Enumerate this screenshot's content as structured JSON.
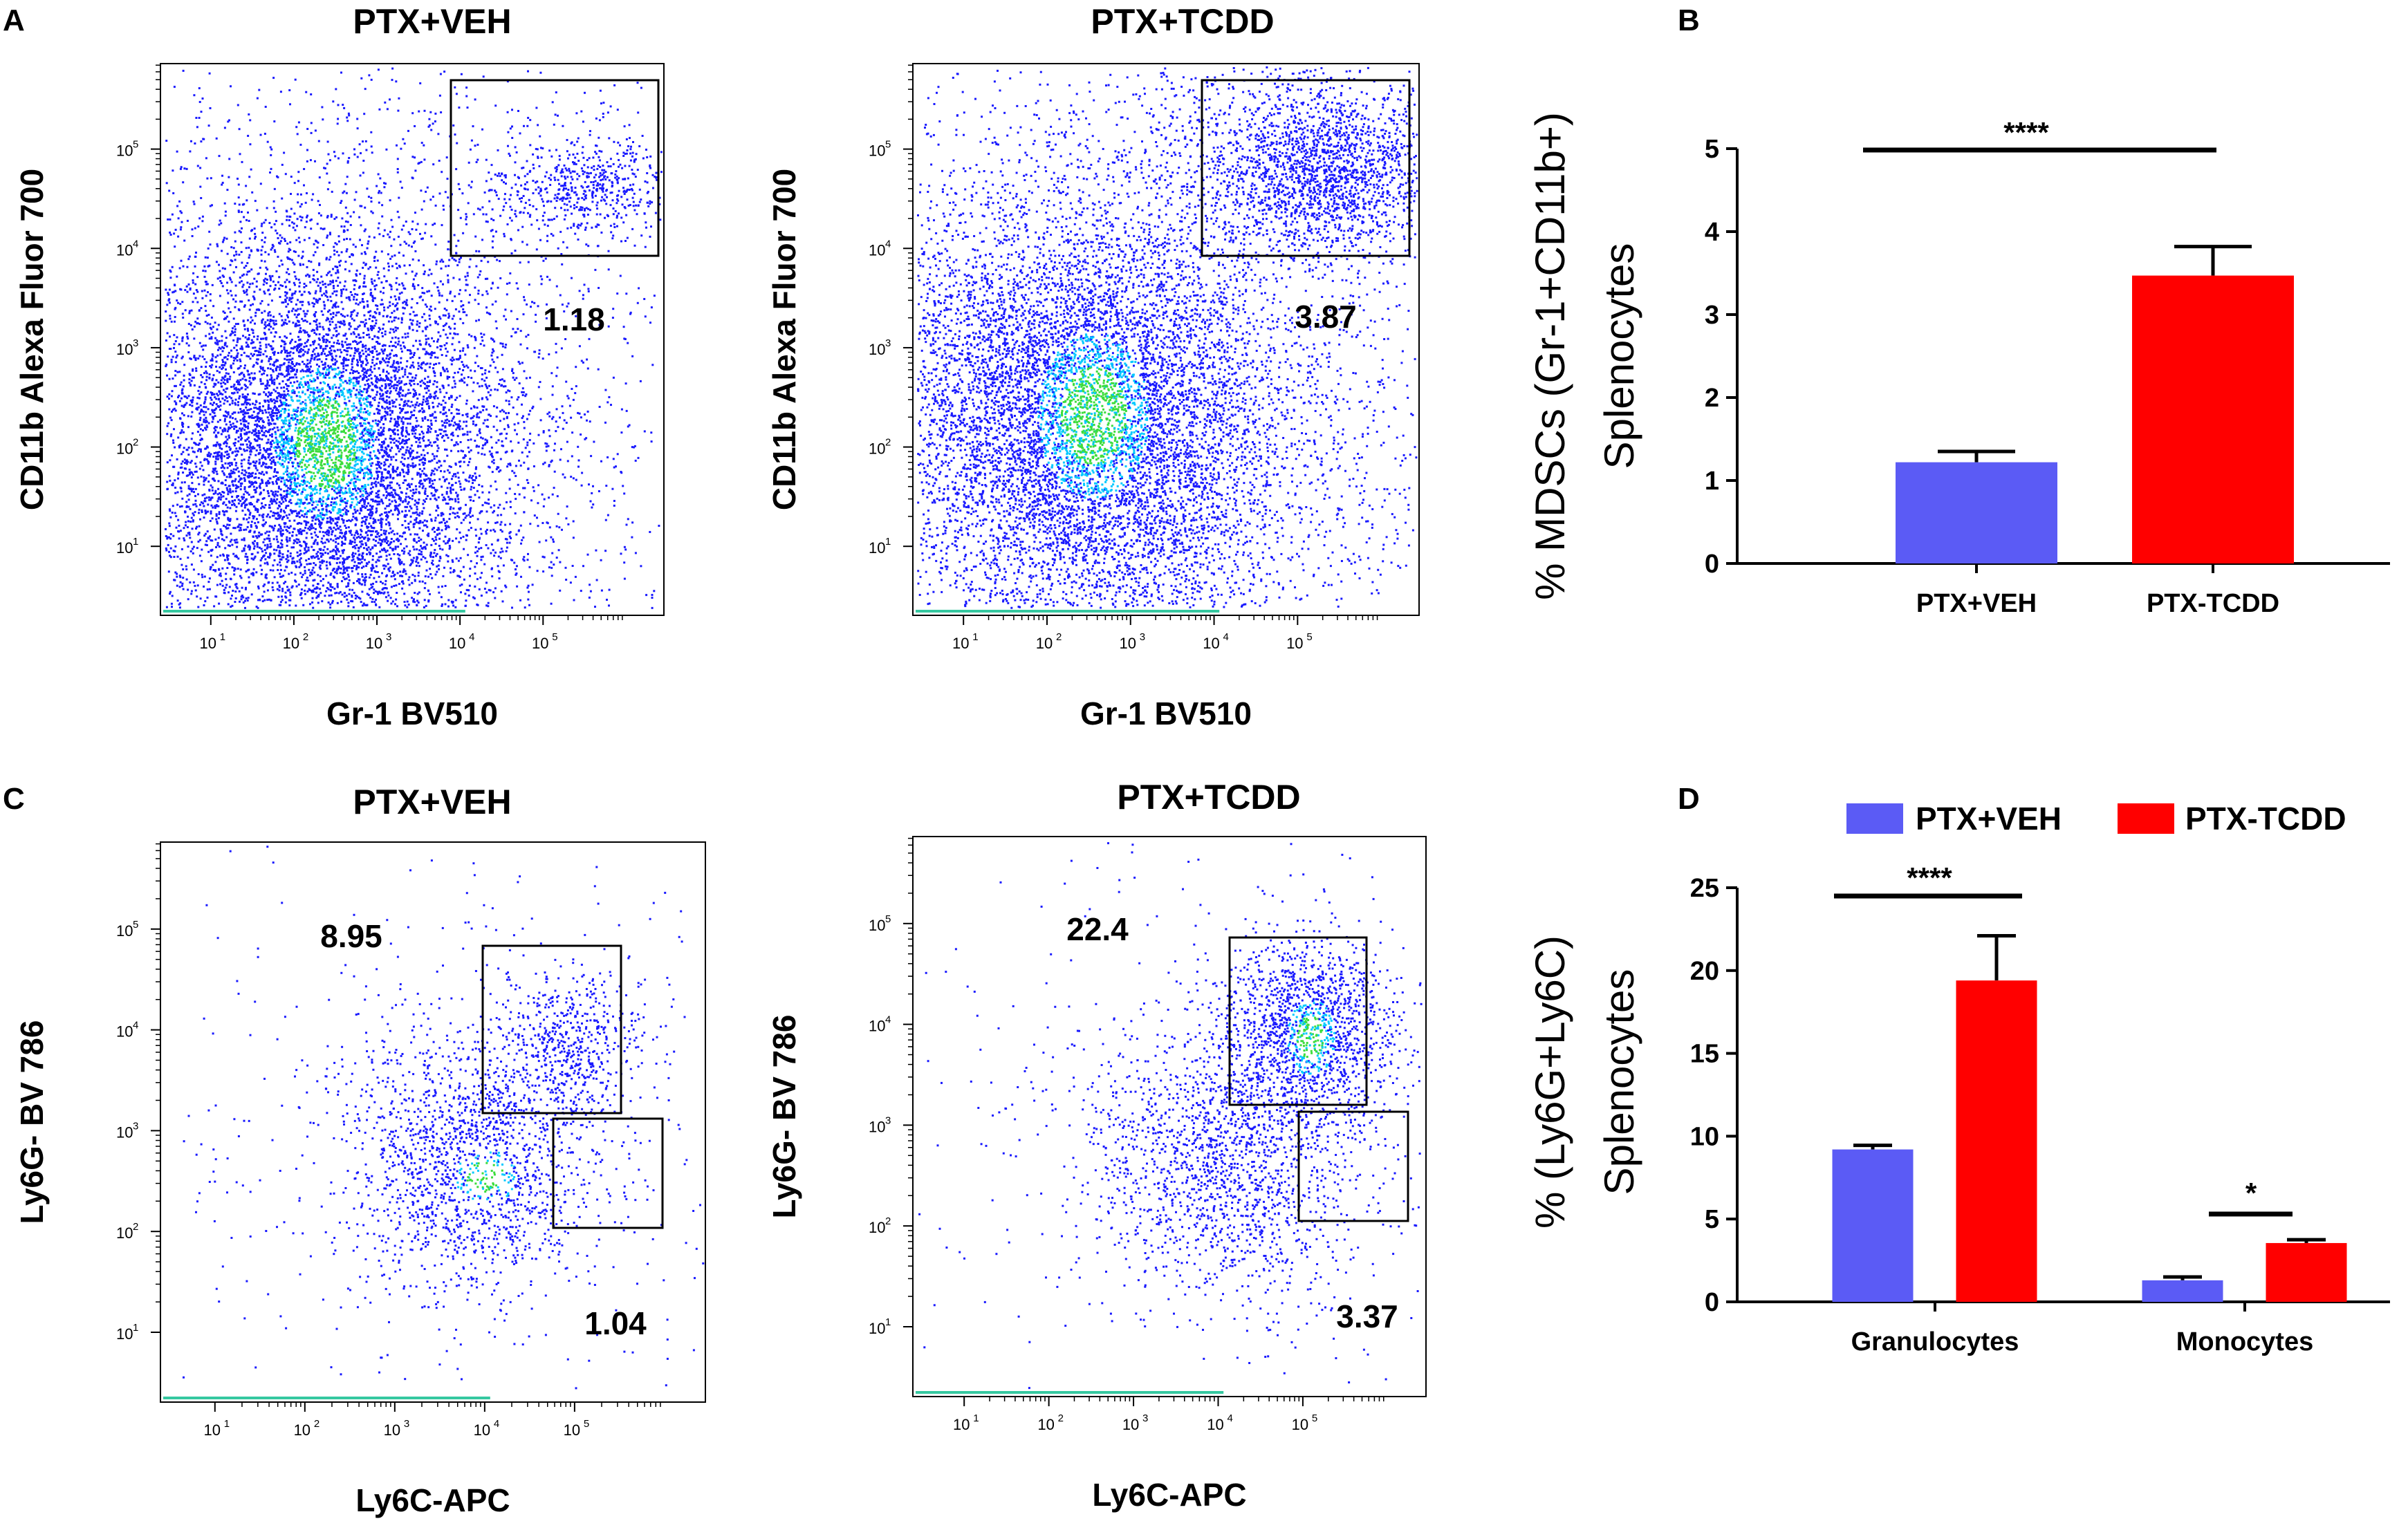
{
  "panel_letters": {
    "a": "A",
    "b": "B",
    "c": "C",
    "d": "D"
  },
  "colors": {
    "blue_bar": "#5b5bf5",
    "red_bar": "#ff0000",
    "dot_blue": "#1a1aff",
    "dot_cyan": "#00c8ff",
    "dot_green": "#3cdc3c",
    "axis": "#000000"
  },
  "flow_plots": [
    {
      "id": "a-left",
      "title": "PTX+VEH",
      "xlabel": "Gr-1 BV510",
      "ylabel": "CD11b Alexa Fluor 700",
      "x_ticks": [
        "10",
        "10",
        "10",
        "10",
        "10"
      ],
      "x_tick_exps": [
        "1",
        "2",
        "3",
        "4",
        "5"
      ],
      "y_ticks": [
        "10",
        "10",
        "10",
        "10",
        "10"
      ],
      "y_tick_exps": [
        "1",
        "2",
        "3",
        "4",
        "5"
      ],
      "gate_labels": [
        "1.18"
      ],
      "gate_values": [
        1.18
      ]
    },
    {
      "id": "a-right",
      "title": "PTX+TCDD",
      "xlabel": "Gr-1 BV510",
      "ylabel": "CD11b Alexa Fluor 700",
      "x_ticks": [
        "10",
        "10",
        "10",
        "10",
        "10"
      ],
      "x_tick_exps": [
        "1",
        "2",
        "3",
        "4",
        "5"
      ],
      "y_ticks": [
        "10",
        "10",
        "10",
        "10",
        "10"
      ],
      "y_tick_exps": [
        "1",
        "2",
        "3",
        "4",
        "5"
      ],
      "gate_labels": [
        "3.87"
      ],
      "gate_values": [
        3.87
      ]
    },
    {
      "id": "c-left",
      "title": "PTX+VEH",
      "xlabel": "Ly6C-APC",
      "ylabel": "Ly6G- BV 786",
      "x_ticks": [
        "10",
        "10",
        "10",
        "10",
        "10"
      ],
      "x_tick_exps": [
        "1",
        "2",
        "3",
        "4",
        "5"
      ],
      "y_ticks": [
        "10",
        "10",
        "10",
        "10",
        "10"
      ],
      "y_tick_exps": [
        "1",
        "2",
        "3",
        "4",
        "5"
      ],
      "gate_labels": [
        "8.95",
        "1.04"
      ],
      "gate_values": [
        8.95,
        1.04
      ]
    },
    {
      "id": "c-right",
      "title": "PTX+TCDD",
      "xlabel": "Ly6C-APC",
      "ylabel": "Ly6G- BV 786",
      "x_ticks": [
        "10",
        "10",
        "10",
        "10",
        "10"
      ],
      "x_tick_exps": [
        "1",
        "2",
        "3",
        "4",
        "5"
      ],
      "y_ticks": [
        "10",
        "10",
        "10",
        "10",
        "10"
      ],
      "y_tick_exps": [
        "1",
        "2",
        "3",
        "4",
        "5"
      ],
      "gate_labels": [
        "22.4",
        "3.37"
      ],
      "gate_values": [
        22.4,
        3.37
      ]
    }
  ],
  "chart_data": [
    {
      "id": "B",
      "type": "bar",
      "categories": [
        "PTX+VEH",
        "PTX-TCDD"
      ],
      "values": [
        1.22,
        3.47
      ],
      "errors": [
        0.13,
        0.35
      ],
      "ylabel_line1": "% MDSCs (Gr-1+CD11b+)",
      "ylabel_line2": "Splenocytes",
      "ylim": [
        0,
        5
      ],
      "yticks": [
        "0",
        "1",
        "2",
        "3",
        "4",
        "5"
      ],
      "significance": "****"
    },
    {
      "id": "D",
      "type": "bar",
      "categories": [
        "Granulocytes",
        "Monocytes"
      ],
      "series": [
        {
          "name": "PTX+VEH",
          "values": [
            9.2,
            1.3
          ],
          "errors": [
            0.25,
            0.2
          ]
        },
        {
          "name": "PTX-TCDD",
          "values": [
            19.4,
            3.55
          ],
          "errors": [
            2.7,
            0.2
          ]
        }
      ],
      "ylabel_line1": "% (Ly6G+Ly6C)",
      "ylabel_line2": "Splenocytes",
      "ylim": [
        0,
        25
      ],
      "yticks": [
        "0",
        "5",
        "10",
        "15",
        "20",
        "25"
      ],
      "significance": [
        "****",
        "*"
      ],
      "legend": [
        "PTX+VEH",
        "PTX-TCDD"
      ]
    }
  ]
}
